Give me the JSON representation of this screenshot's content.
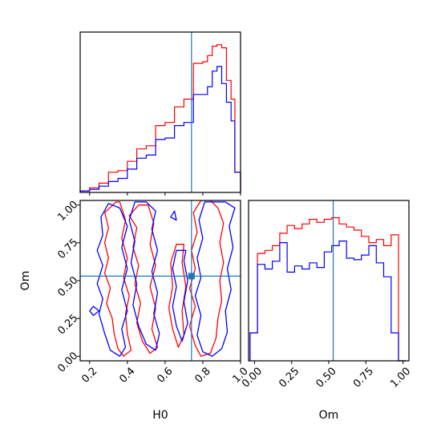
{
  "chart_data": {
    "type": "corner",
    "truth": {
      "H0": 0.74,
      "Om": 0.53
    },
    "colors": {
      "red": "#ff0000",
      "blue": "#0000ff",
      "truth": "#1f77b4"
    },
    "panels": [
      {
        "id": "hist-H0",
        "type": "step",
        "param": "H0",
        "xlim": [
          0.15,
          1.0
        ],
        "xticks": [
          0.2,
          0.4,
          0.6,
          0.8,
          1.0
        ],
        "ylim": [
          0,
          1
        ],
        "bin_edges": [
          0.15,
          0.2,
          0.25,
          0.3,
          0.35,
          0.4,
          0.45,
          0.5,
          0.55,
          0.6,
          0.65,
          0.7,
          0.75,
          0.8,
          0.825,
          0.85,
          0.875,
          0.9,
          0.925,
          0.95,
          0.97,
          1.0
        ],
        "series": [
          {
            "color": "red",
            "values": [
              0.01,
              0.03,
              0.06,
              0.13,
              0.14,
              0.2,
              0.28,
              0.3,
              0.43,
              0.45,
              0.55,
              0.6,
              0.83,
              0.84,
              0.88,
              0.94,
              0.95,
              0.93,
              0.72,
              0.6,
              0.13
            ]
          },
          {
            "color": "blue",
            "values": [
              0.01,
              0.02,
              0.04,
              0.07,
              0.09,
              0.15,
              0.22,
              0.24,
              0.34,
              0.35,
              0.43,
              0.45,
              0.63,
              0.63,
              0.68,
              0.78,
              0.81,
              0.7,
              0.58,
              0.46,
              0.13
            ]
          }
        ]
      },
      {
        "id": "contour-H0-Om",
        "type": "contour",
        "xlabel": "H0",
        "ylabel": "Om",
        "xlim": [
          0.15,
          1.0
        ],
        "ylim": [
          -0.03,
          1.03
        ],
        "xticks": [
          0.2,
          0.4,
          0.6,
          0.8,
          1.0
        ],
        "xtick_labels": [
          "0.2",
          "0.4",
          "0.6",
          "0.8",
          "1.0"
        ],
        "yticks": [
          0.0,
          0.25,
          0.5,
          0.75,
          1.0
        ],
        "ytick_labels": [
          "0.00",
          "0.25",
          "0.50",
          "0.75",
          "1.00"
        ],
        "contours": [
          {
            "color": "red",
            "points": [
              [
                0.34,
                1.02
              ],
              [
                0.28,
                0.95
              ],
              [
                0.3,
                0.85
              ],
              [
                0.28,
                0.75
              ],
              [
                0.3,
                0.65
              ],
              [
                0.28,
                0.55
              ],
              [
                0.31,
                0.45
              ],
              [
                0.29,
                0.35
              ],
              [
                0.32,
                0.25
              ],
              [
                0.33,
                0.15
              ],
              [
                0.35,
                0.05
              ],
              [
                0.38,
                0.0
              ],
              [
                0.42,
                0.04
              ],
              [
                0.4,
                0.15
              ],
              [
                0.39,
                0.28
              ],
              [
                0.41,
                0.4
              ],
              [
                0.38,
                0.52
              ],
              [
                0.4,
                0.65
              ],
              [
                0.37,
                0.78
              ],
              [
                0.39,
                0.9
              ],
              [
                0.36,
                1.02
              ]
            ]
          },
          {
            "color": "red",
            "points": [
              [
                0.46,
                1.0
              ],
              [
                0.41,
                0.93
              ],
              [
                0.45,
                0.85
              ],
              [
                0.43,
                0.72
              ],
              [
                0.46,
                0.6
              ],
              [
                0.44,
                0.48
              ],
              [
                0.47,
                0.35
              ],
              [
                0.45,
                0.22
              ],
              [
                0.48,
                0.1
              ],
              [
                0.52,
                0.02
              ],
              [
                0.56,
                0.06
              ],
              [
                0.53,
                0.18
              ],
              [
                0.55,
                0.32
              ],
              [
                0.52,
                0.46
              ],
              [
                0.55,
                0.6
              ],
              [
                0.52,
                0.74
              ],
              [
                0.54,
                0.88
              ],
              [
                0.51,
                1.0
              ]
            ]
          },
          {
            "color": "red",
            "points": [
              [
                0.79,
                1.03
              ],
              [
                0.75,
                0.95
              ],
              [
                0.77,
                0.82
              ],
              [
                0.74,
                0.7
              ],
              [
                0.76,
                0.58
              ],
              [
                0.73,
                0.45
              ],
              [
                0.76,
                0.33
              ],
              [
                0.73,
                0.2
              ],
              [
                0.76,
                0.07
              ],
              [
                0.79,
                0.0
              ],
              [
                0.84,
                0.02
              ],
              [
                0.87,
                0.12
              ],
              [
                0.88,
                0.25
              ],
              [
                0.9,
                0.37
              ],
              [
                0.89,
                0.5
              ],
              [
                0.91,
                0.62
              ],
              [
                0.89,
                0.75
              ],
              [
                0.91,
                0.88
              ],
              [
                0.88,
                0.98
              ],
              [
                0.84,
                1.03
              ]
            ]
          },
          {
            "color": "red",
            "points": [
              [
                0.66,
                0.74
              ],
              [
                0.63,
                0.62
              ],
              [
                0.64,
                0.46
              ],
              [
                0.62,
                0.32
              ],
              [
                0.64,
                0.18
              ],
              [
                0.67,
                0.06
              ],
              [
                0.7,
                0.14
              ],
              [
                0.69,
                0.3
              ],
              [
                0.71,
                0.46
              ],
              [
                0.69,
                0.62
              ],
              [
                0.7,
                0.74
              ]
            ]
          },
          {
            "color": "blue",
            "points": [
              [
                0.3,
                1.01
              ],
              [
                0.26,
                0.92
              ],
              [
                0.27,
                0.8
              ],
              [
                0.24,
                0.7
              ],
              [
                0.27,
                0.6
              ],
              [
                0.24,
                0.48
              ],
              [
                0.27,
                0.38
              ],
              [
                0.25,
                0.28
              ],
              [
                0.28,
                0.15
              ],
              [
                0.31,
                0.04
              ],
              [
                0.36,
                0.0
              ],
              [
                0.39,
                0.06
              ],
              [
                0.37,
                0.18
              ],
              [
                0.4,
                0.3
              ],
              [
                0.37,
                0.44
              ],
              [
                0.4,
                0.58
              ],
              [
                0.37,
                0.72
              ],
              [
                0.4,
                0.86
              ],
              [
                0.36,
                0.98
              ]
            ]
          },
          {
            "color": "blue",
            "points": [
              [
                0.44,
                1.02
              ],
              [
                0.41,
                0.9
              ],
              [
                0.44,
                0.76
              ],
              [
                0.42,
                0.62
              ],
              [
                0.45,
                0.48
              ],
              [
                0.43,
                0.34
              ],
              [
                0.46,
                0.2
              ],
              [
                0.5,
                0.08
              ],
              [
                0.55,
                0.04
              ],
              [
                0.57,
                0.15
              ],
              [
                0.54,
                0.28
              ],
              [
                0.56,
                0.42
              ],
              [
                0.53,
                0.56
              ],
              [
                0.56,
                0.7
              ],
              [
                0.53,
                0.84
              ],
              [
                0.55,
                0.96
              ],
              [
                0.5,
                1.02
              ]
            ]
          },
          {
            "color": "blue",
            "points": [
              [
                0.81,
                1.02
              ],
              [
                0.78,
                0.9
              ],
              [
                0.8,
                0.78
              ],
              [
                0.77,
                0.65
              ],
              [
                0.79,
                0.52
              ],
              [
                0.76,
                0.4
              ],
              [
                0.79,
                0.27
              ],
              [
                0.77,
                0.14
              ],
              [
                0.8,
                0.03
              ],
              [
                0.85,
                0.0
              ],
              [
                0.9,
                0.05
              ],
              [
                0.93,
                0.16
              ],
              [
                0.92,
                0.3
              ],
              [
                0.95,
                0.44
              ],
              [
                0.93,
                0.58
              ],
              [
                0.96,
                0.72
              ],
              [
                0.94,
                0.86
              ],
              [
                0.97,
                0.98
              ],
              [
                0.92,
                1.02
              ]
            ]
          },
          {
            "color": "blue",
            "points": [
              [
                0.66,
                0.7
              ],
              [
                0.64,
                0.58
              ],
              [
                0.66,
                0.46
              ],
              [
                0.64,
                0.33
              ],
              [
                0.66,
                0.2
              ],
              [
                0.69,
                0.1
              ],
              [
                0.72,
                0.22
              ],
              [
                0.7,
                0.36
              ],
              [
                0.72,
                0.5
              ],
              [
                0.7,
                0.63
              ],
              [
                0.71,
                0.7
              ]
            ]
          },
          {
            "color": "blue",
            "points": [
              [
                0.22,
                0.33
              ],
              [
                0.2,
                0.3
              ],
              [
                0.22,
                0.27
              ],
              [
                0.25,
                0.3
              ]
            ]
          },
          {
            "color": "blue",
            "points": [
              [
                0.65,
                0.96
              ],
              [
                0.63,
                0.92
              ],
              [
                0.66,
                0.9
              ]
            ]
          }
        ]
      },
      {
        "id": "hist-Om",
        "type": "step",
        "param": "Om",
        "xlabel": "Om",
        "xlim": [
          -0.04,
          1.04
        ],
        "xticks": [
          0.0,
          0.25,
          0.5,
          0.75,
          1.0
        ],
        "xtick_labels": [
          "0.00",
          "0.25",
          "0.50",
          "0.75",
          "1.00"
        ],
        "ylim": [
          0,
          1
        ],
        "bin_edges": [
          -0.03,
          0.02,
          0.07,
          0.12,
          0.17,
          0.22,
          0.27,
          0.32,
          0.37,
          0.42,
          0.47,
          0.52,
          0.57,
          0.62,
          0.67,
          0.72,
          0.77,
          0.82,
          0.87,
          0.92,
          0.97,
          1.02
        ],
        "series": [
          {
            "color": "red",
            "values": [
              0.18,
              0.69,
              0.71,
              0.74,
              0.82,
              0.87,
              0.85,
              0.88,
              0.91,
              0.89,
              0.91,
              0.92,
              0.88,
              0.86,
              0.84,
              0.8,
              0.76,
              0.78,
              0.74,
              0.81,
              0.0
            ]
          },
          {
            "color": "blue",
            "values": [
              0.18,
              0.62,
              0.59,
              0.64,
              0.76,
              0.57,
              0.61,
              0.59,
              0.63,
              0.6,
              0.7,
              0.74,
              0.77,
              0.66,
              0.65,
              0.68,
              0.74,
              0.63,
              0.54,
              0.18,
              0.0
            ]
          }
        ]
      }
    ]
  }
}
